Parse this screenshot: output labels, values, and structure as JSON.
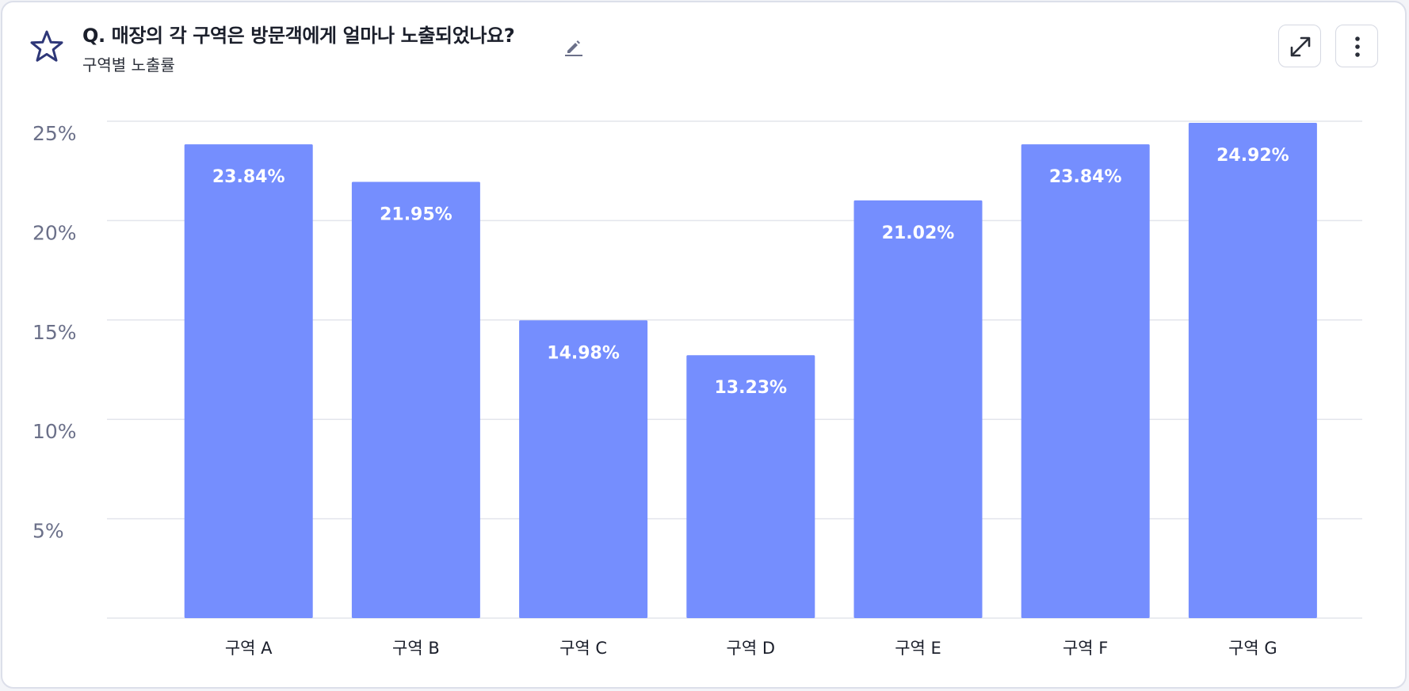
{
  "header": {
    "title": "Q. 매장의 각 구역은 방문객에게 얼마나 노출되었나요?",
    "subtitle": "구역별 노출률"
  },
  "icons": {
    "favorite": "star-icon",
    "edit": "pencil-icon",
    "expand": "expand-icon",
    "more": "more-vertical-icon"
  },
  "colors": {
    "bar": "#758efe",
    "bar_label": "#ffffff",
    "axis_text": "#6b7089",
    "grid": "#e3e5ec",
    "category_text": "#1b1f2b",
    "star": "#2e3778"
  },
  "chart_data": {
    "type": "bar",
    "title": "",
    "xlabel": "",
    "ylabel": "",
    "ylim": [
      0,
      25
    ],
    "y_ticks": [
      5,
      10,
      15,
      20,
      25
    ],
    "y_tick_labels": [
      "5%",
      "10%",
      "15%",
      "20%",
      "25%"
    ],
    "categories": [
      "구역 A",
      "구역 B",
      "구역 C",
      "구역 D",
      "구역 E",
      "구역 F",
      "구역 G"
    ],
    "values": [
      23.84,
      21.95,
      14.98,
      13.23,
      21.02,
      23.84,
      24.92
    ],
    "value_labels": [
      "23.84%",
      "21.95%",
      "14.98%",
      "13.23%",
      "21.02%",
      "23.84%",
      "24.92%"
    ],
    "grid": true,
    "legend": "none"
  }
}
